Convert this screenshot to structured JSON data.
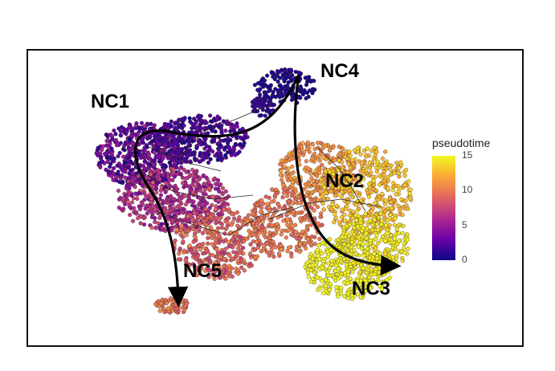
{
  "chart_data": {
    "type": "scatter",
    "title": "",
    "xlabel": "",
    "ylabel": "",
    "color_scale": {
      "title": "pseudotime",
      "range": [
        0,
        15
      ],
      "ticks": [
        0,
        5,
        10,
        15
      ],
      "ticks_text": [
        "0",
        "5",
        "10",
        "15"
      ],
      "colors": [
        "#0d0887",
        "#6a00a8",
        "#b12a90",
        "#e16462",
        "#fca636",
        "#f0f921"
      ]
    },
    "clusters": [
      {
        "label": "NC1",
        "pseudotime_approx": 3
      },
      {
        "label": "NC2",
        "pseudotime_approx": 12
      },
      {
        "label": "NC3",
        "pseudotime_approx": 15
      },
      {
        "label": "NC4",
        "pseudotime_approx": 0
      },
      {
        "label": "NC5",
        "pseudotime_approx": 10
      }
    ],
    "trajectories": [
      {
        "from": "NC4",
        "to": "NC5",
        "via": "NC1"
      },
      {
        "from": "NC4",
        "to": "NC3",
        "via": "NC2"
      }
    ],
    "grid": false,
    "legend_position": "right"
  }
}
